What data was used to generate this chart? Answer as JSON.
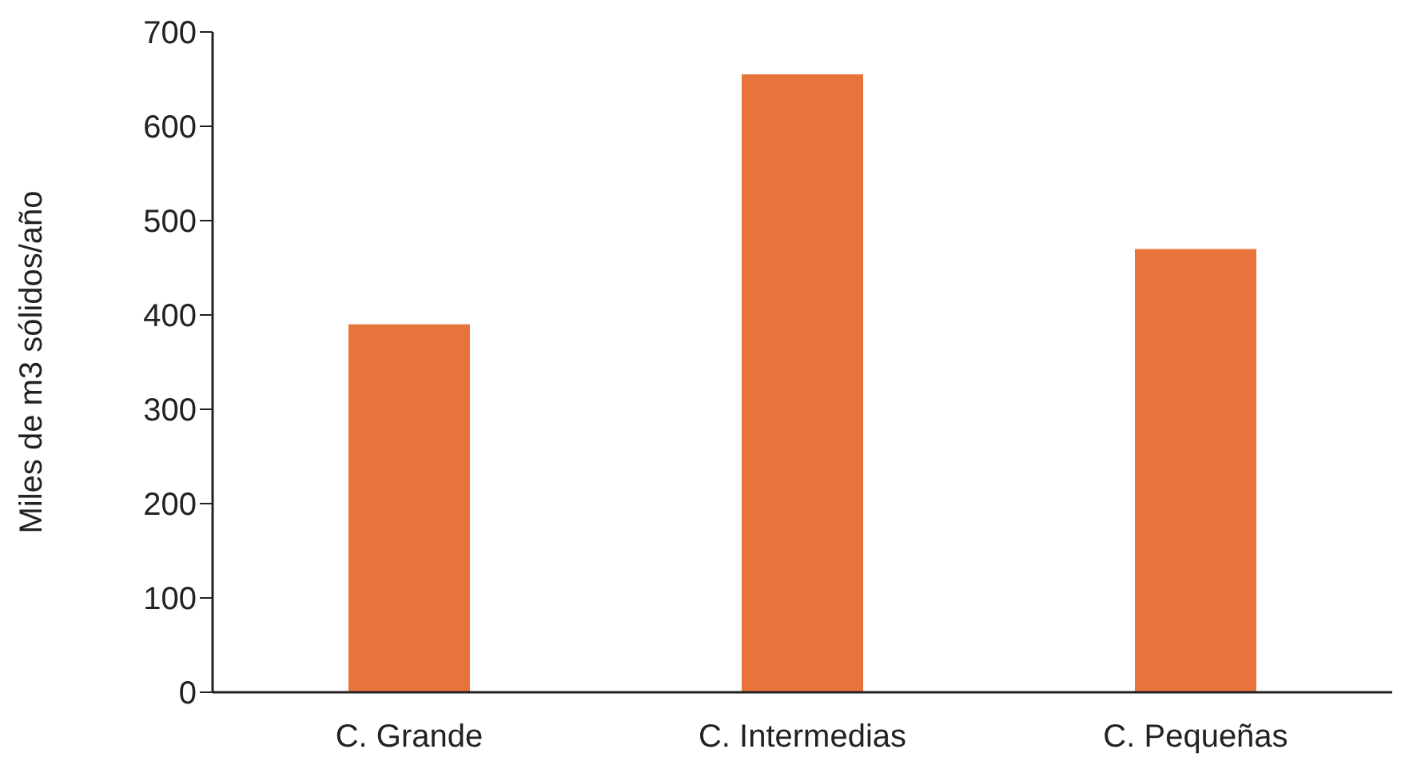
{
  "chart_data": {
    "type": "bar",
    "ylabel": "Miles de m3 sólidos/año",
    "categories": [
      "C. Grande",
      "C. Intermedias",
      "C. Pequeñas"
    ],
    "values": [
      390,
      655,
      470
    ],
    "color": "#e8743b",
    "ylim": [
      0,
      700
    ],
    "yticks": [
      0,
      100,
      200,
      300,
      400,
      500,
      600,
      700
    ],
    "grid": false,
    "legend": false
  }
}
